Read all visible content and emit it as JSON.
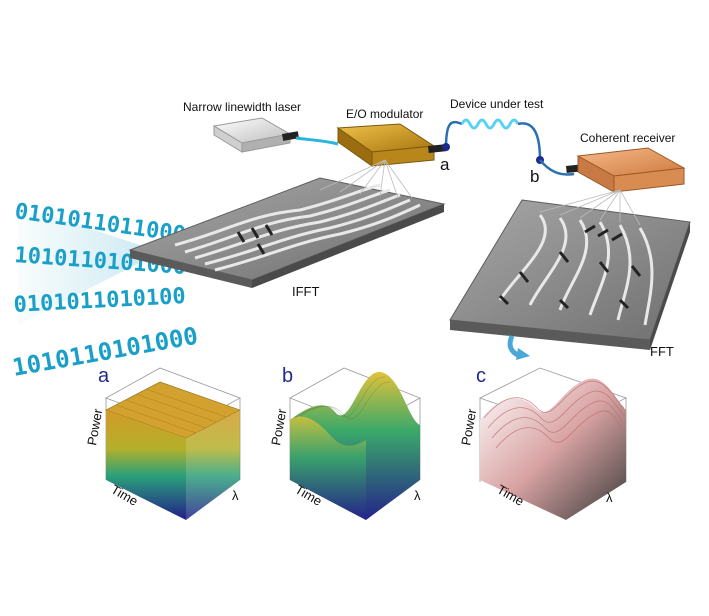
{
  "components": {
    "laser": "Narrow linewidth laser",
    "modulator": "E/O modulator",
    "dut": "Device under test",
    "receiver": "Coherent receiver",
    "ifft": "IFFT",
    "fft": "FFT",
    "point_a": "a",
    "point_b": "b"
  },
  "bitstream": {
    "rows": [
      "0101011011000",
      "1010110101000",
      "0101011010100",
      "1010110101000"
    ]
  },
  "panels": [
    {
      "letter": "a",
      "ylabel": "Power",
      "xlabel": "Time",
      "zlabel": "λ"
    },
    {
      "letter": "b",
      "ylabel": "Power",
      "xlabel": "Time",
      "zlabel": "λ"
    },
    {
      "letter": "c",
      "ylabel": "Power",
      "xlabel": "Time",
      "zlabel": "λ"
    }
  ],
  "colors": {
    "chip": "#8f8f8f",
    "fiber": "#28b6dc",
    "modulator": "#c8961e",
    "receiver": "#e59a5c",
    "bits": "#1aa0c8",
    "arrow": "#4aa8d8"
  }
}
